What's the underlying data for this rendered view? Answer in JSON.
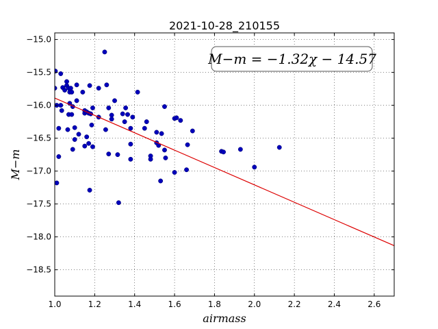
{
  "chart_data": {
    "type": "scatter",
    "title": "2021-10-28_210155",
    "xlabel": "airmass",
    "ylabel": "M−m",
    "xlim": [
      1.0,
      2.7
    ],
    "ylim": [
      -18.9,
      -14.9
    ],
    "y_inverted": true,
    "grid": true,
    "grid_style": "dotted",
    "x_ticks": [
      1.0,
      1.2,
      1.4,
      1.6,
      1.8,
      2.0,
      2.2,
      2.4,
      2.6
    ],
    "x_tick_labels": [
      "1.0",
      "1.2",
      "1.4",
      "1.6",
      "1.8",
      "2.0",
      "2.2",
      "2.4",
      "2.6"
    ],
    "y_ticks": [
      -15.0,
      -15.5,
      -16.0,
      -16.5,
      -17.0,
      -17.5,
      -18.0,
      -18.5
    ],
    "y_tick_labels": [
      "−15.0",
      "−15.5",
      "−16.0",
      "−16.5",
      "−17.0",
      "−17.5",
      "−18.0",
      "−18.5"
    ],
    "annotation": "M−m = −1.32χ − 14.57",
    "fit": {
      "slope": -1.32,
      "intercept": -14.57,
      "x_range": [
        1.0,
        2.7
      ],
      "color": "#dd0000"
    },
    "point_color": "#0000bb",
    "points": [
      [
        1.003,
        -15.48
      ],
      [
        1.0,
        -15.74
      ],
      [
        1.01,
        -16.0
      ],
      [
        1.01,
        -17.18
      ],
      [
        1.02,
        -16.35
      ],
      [
        1.02,
        -16.78
      ],
      [
        1.03,
        -15.52
      ],
      [
        1.03,
        -16.0
      ],
      [
        1.035,
        -16.08
      ],
      [
        1.04,
        -15.73
      ],
      [
        1.05,
        -15.77
      ],
      [
        1.06,
        -15.64
      ],
      [
        1.06,
        -15.7
      ],
      [
        1.065,
        -16.37
      ],
      [
        1.07,
        -16.14
      ],
      [
        1.07,
        -15.74
      ],
      [
        1.075,
        -15.8
      ],
      [
        1.075,
        -15.97
      ],
      [
        1.08,
        -15.74
      ],
      [
        1.085,
        -15.8
      ],
      [
        1.085,
        -16.14
      ],
      [
        1.09,
        -16.02
      ],
      [
        1.09,
        -16.67
      ],
      [
        1.1,
        -16.34
      ],
      [
        1.1,
        -16.52
      ],
      [
        1.11,
        -15.93
      ],
      [
        1.11,
        -15.69
      ],
      [
        1.12,
        -16.44
      ],
      [
        1.14,
        -15.8
      ],
      [
        1.15,
        -16.08
      ],
      [
        1.15,
        -16.12
      ],
      [
        1.15,
        -16.62
      ],
      [
        1.16,
        -16.48
      ],
      [
        1.16,
        -16.1
      ],
      [
        1.17,
        -16.12
      ],
      [
        1.17,
        -16.58
      ],
      [
        1.175,
        -15.7
      ],
      [
        1.175,
        -17.29
      ],
      [
        1.18,
        -16.13
      ],
      [
        1.185,
        -16.3
      ],
      [
        1.19,
        -16.04
      ],
      [
        1.19,
        -16.63
      ],
      [
        1.22,
        -15.74
      ],
      [
        1.22,
        -16.18
      ],
      [
        1.25,
        -15.19
      ],
      [
        1.255,
        -16.37
      ],
      [
        1.26,
        -15.69
      ],
      [
        1.27,
        -16.74
      ],
      [
        1.27,
        -16.04
      ],
      [
        1.285,
        -16.15
      ],
      [
        1.285,
        -16.21
      ],
      [
        1.3,
        -15.93
      ],
      [
        1.315,
        -16.75
      ],
      [
        1.32,
        -17.48
      ],
      [
        1.34,
        -16.13
      ],
      [
        1.35,
        -16.25
      ],
      [
        1.355,
        -16.04
      ],
      [
        1.365,
        -16.14
      ],
      [
        1.38,
        -16.35
      ],
      [
        1.38,
        -16.82
      ],
      [
        1.38,
        -16.59
      ],
      [
        1.39,
        -16.18
      ],
      [
        1.415,
        -15.8
      ],
      [
        1.45,
        -16.35
      ],
      [
        1.46,
        -16.25
      ],
      [
        1.48,
        -16.77
      ],
      [
        1.48,
        -16.82
      ],
      [
        1.51,
        -16.41
      ],
      [
        1.51,
        -16.57
      ],
      [
        1.52,
        -16.61
      ],
      [
        1.53,
        -17.15
      ],
      [
        1.535,
        -16.43
      ],
      [
        1.55,
        -16.02
      ],
      [
        1.55,
        -16.68
      ],
      [
        1.555,
        -16.8
      ],
      [
        1.6,
        -16.2
      ],
      [
        1.6,
        -17.02
      ],
      [
        1.61,
        -16.19
      ],
      [
        1.63,
        -16.23
      ],
      [
        1.66,
        -16.98
      ],
      [
        1.665,
        -16.6
      ],
      [
        1.69,
        -16.39
      ],
      [
        1.835,
        -16.7
      ],
      [
        1.845,
        -16.71
      ],
      [
        1.93,
        -16.67
      ],
      [
        2.0,
        -16.94
      ],
      [
        2.125,
        -16.64
      ]
    ]
  }
}
